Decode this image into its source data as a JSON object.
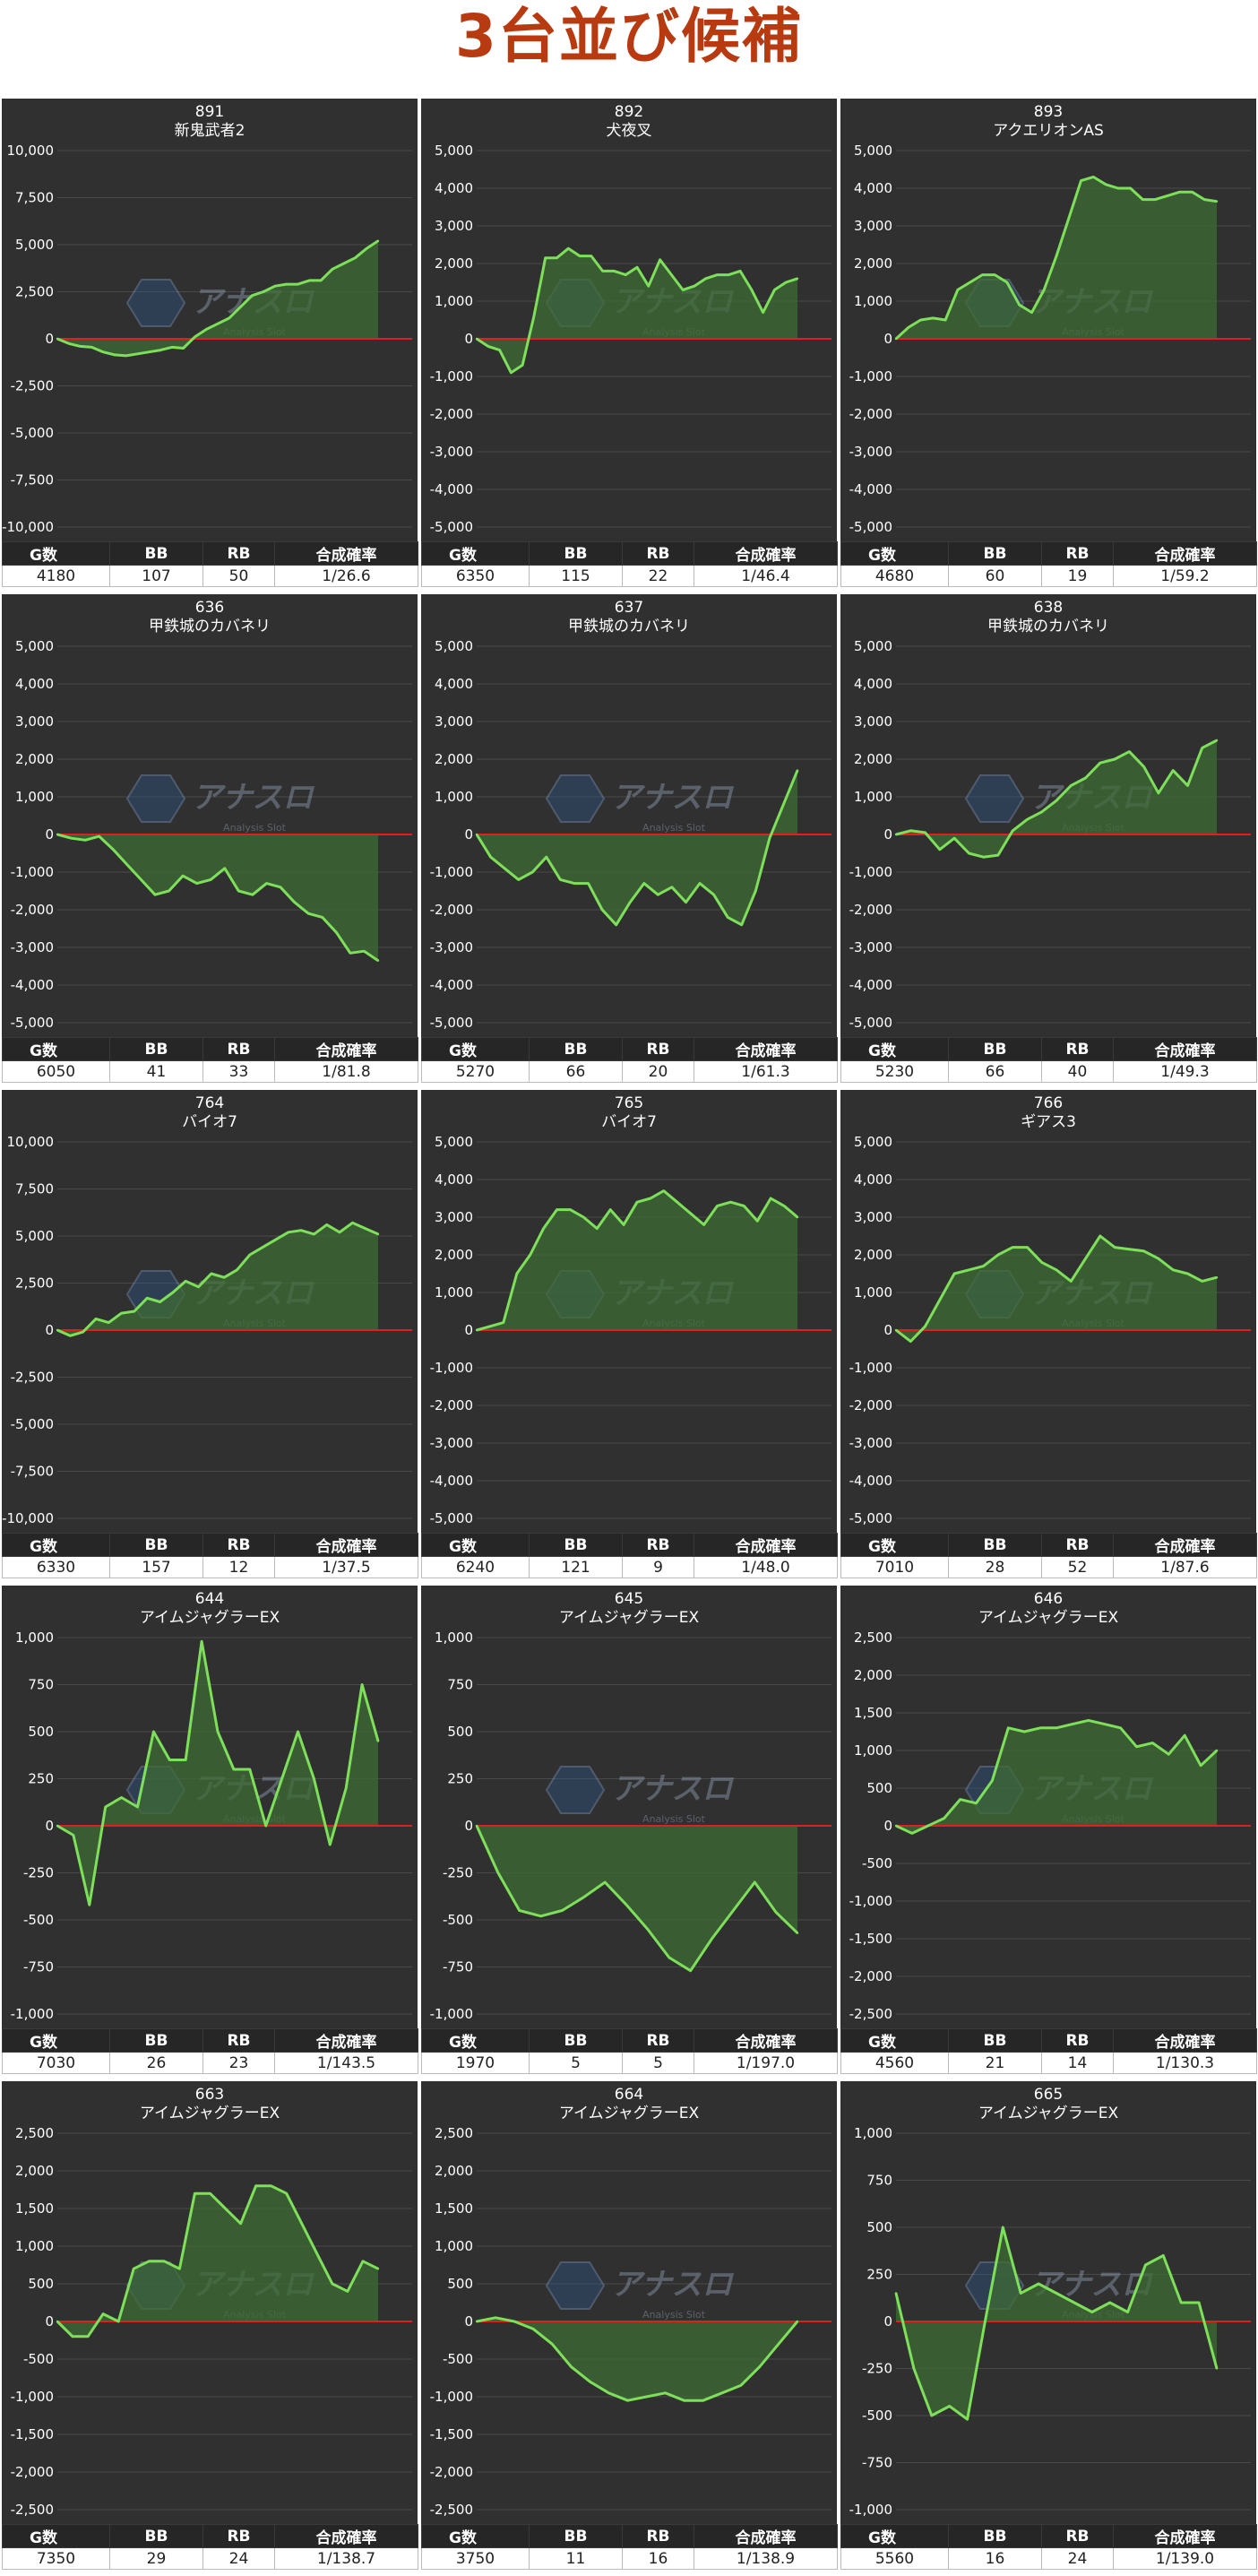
{
  "page_title": "3台並び候補",
  "table_headers": [
    "G数",
    "BB",
    "RB",
    "合成確率"
  ],
  "watermark": {
    "brand": "アナスロ",
    "tagline": "Analysis Slot"
  },
  "colors": {
    "line": "#7ee05a",
    "fill": "#3e6b34",
    "zero_line": "#e02020",
    "plot_bg": "#303030",
    "title": "#b83a10"
  },
  "chart_data": [
    {
      "type": "area",
      "title": "891",
      "subtitle": "新鬼武者2",
      "ylim": [
        -10000,
        10000
      ],
      "yticks": [
        "10,000",
        "7,500",
        "5,000",
        "2,500",
        "0",
        "-2,500",
        "-5,000",
        "-7,500",
        "-10,000"
      ],
      "values": [
        0,
        -250,
        -400,
        -450,
        -700,
        -850,
        -900,
        -800,
        -700,
        -600,
        -450,
        -500,
        100,
        500,
        800,
        1100,
        1700,
        2300,
        2500,
        2800,
        2900,
        2900,
        3100,
        3100,
        3700,
        4000,
        4300,
        4800,
        5200
      ],
      "stats": [
        "4180",
        "107",
        "50",
        "1/26.6"
      ]
    },
    {
      "type": "area",
      "title": "892",
      "subtitle": "犬夜叉",
      "ylim": [
        -5000,
        5000
      ],
      "yticks": [
        "5,000",
        "4,000",
        "3,000",
        "2,000",
        "1,000",
        "0",
        "-1,000",
        "-2,000",
        "-3,000",
        "-4,000",
        "-5,000"
      ],
      "values": [
        0,
        -200,
        -300,
        -900,
        -700,
        600,
        2150,
        2150,
        2400,
        2200,
        2200,
        1800,
        1800,
        1700,
        1900,
        1400,
        2100,
        1700,
        1300,
        1400,
        1600,
        1700,
        1700,
        1800,
        1300,
        700,
        1300,
        1500,
        1600
      ],
      "stats": [
        "6350",
        "115",
        "22",
        "1/46.4"
      ]
    },
    {
      "type": "area",
      "title": "893",
      "subtitle": "アクエリオンAS",
      "ylim": [
        -5000,
        5000
      ],
      "yticks": [
        "5,000",
        "4,000",
        "3,000",
        "2,000",
        "1,000",
        "0",
        "-1,000",
        "-2,000",
        "-3,000",
        "-4,000",
        "-5,000"
      ],
      "values": [
        0,
        300,
        500,
        550,
        500,
        1300,
        1500,
        1700,
        1700,
        1500,
        900,
        700,
        1300,
        2200,
        3200,
        4200,
        4300,
        4100,
        4000,
        4000,
        3700,
        3700,
        3800,
        3900,
        3900,
        3700,
        3650
      ],
      "stats": [
        "4680",
        "60",
        "19",
        "1/59.2"
      ]
    },
    {
      "type": "area",
      "title": "636",
      "subtitle": "甲鉄城のカバネリ",
      "ylim": [
        -5000,
        5000
      ],
      "yticks": [
        "5,000",
        "4,000",
        "3,000",
        "2,000",
        "1,000",
        "0",
        "-1,000",
        "-2,000",
        "-3,000",
        "-4,000",
        "-5,000"
      ],
      "values": [
        0,
        -100,
        -150,
        -50,
        -400,
        -800,
        -1200,
        -1600,
        -1500,
        -1100,
        -1300,
        -1200,
        -900,
        -1500,
        -1600,
        -1300,
        -1400,
        -1800,
        -2100,
        -2200,
        -2600,
        -3150,
        -3100,
        -3350
      ],
      "stats": [
        "6050",
        "41",
        "33",
        "1/81.8"
      ]
    },
    {
      "type": "area",
      "title": "637",
      "subtitle": "甲鉄城のカバネリ",
      "ylim": [
        -5000,
        5000
      ],
      "yticks": [
        "5,000",
        "4,000",
        "3,000",
        "2,000",
        "1,000",
        "0",
        "-1,000",
        "-2,000",
        "-3,000",
        "-4,000",
        "-5,000"
      ],
      "values": [
        0,
        -600,
        -900,
        -1200,
        -1000,
        -600,
        -1200,
        -1300,
        -1300,
        -2000,
        -2400,
        -1800,
        -1300,
        -1600,
        -1400,
        -1800,
        -1300,
        -1600,
        -2200,
        -2400,
        -1500,
        -100,
        800,
        1700
      ],
      "stats": [
        "5270",
        "66",
        "20",
        "1/61.3"
      ]
    },
    {
      "type": "area",
      "title": "638",
      "subtitle": "甲鉄城のカバネリ",
      "ylim": [
        -5000,
        5000
      ],
      "yticks": [
        "5,000",
        "4,000",
        "3,000",
        "2,000",
        "1,000",
        "0",
        "-1,000",
        "-2,000",
        "-3,000",
        "-4,000",
        "-5,000"
      ],
      "values": [
        0,
        100,
        50,
        -400,
        -100,
        -500,
        -600,
        -550,
        100,
        400,
        600,
        900,
        1300,
        1500,
        1900,
        2000,
        2200,
        1800,
        1100,
        1700,
        1300,
        2300,
        2500
      ],
      "stats": [
        "5230",
        "66",
        "40",
        "1/49.3"
      ]
    },
    {
      "type": "area",
      "title": "764",
      "subtitle": "バイオ7",
      "ylim": [
        -10000,
        10000
      ],
      "yticks": [
        "10,000",
        "7,500",
        "5,000",
        "2,500",
        "0",
        "-2,500",
        "-5,000",
        "-7,500",
        "-10,000"
      ],
      "values": [
        0,
        -300,
        -100,
        600,
        400,
        900,
        1000,
        1700,
        1500,
        2000,
        2600,
        2300,
        3000,
        2800,
        3200,
        4000,
        4400,
        4800,
        5200,
        5300,
        5100,
        5600,
        5200,
        5700,
        5400,
        5100
      ],
      "stats": [
        "6330",
        "157",
        "12",
        "1/37.5"
      ]
    },
    {
      "type": "area",
      "title": "765",
      "subtitle": "バイオ7",
      "ylim": [
        -5000,
        5000
      ],
      "yticks": [
        "5,000",
        "4,000",
        "3,000",
        "2,000",
        "1,000",
        "0",
        "-1,000",
        "-2,000",
        "-3,000",
        "-4,000",
        "-5,000"
      ],
      "values": [
        0,
        100,
        200,
        1500,
        2000,
        2700,
        3200,
        3200,
        3000,
        2700,
        3200,
        2800,
        3400,
        3500,
        3700,
        3400,
        3100,
        2800,
        3300,
        3400,
        3300,
        2900,
        3500,
        3300,
        3000
      ],
      "stats": [
        "6240",
        "121",
        "9",
        "1/48.0"
      ]
    },
    {
      "type": "area",
      "title": "766",
      "subtitle": "ギアス3",
      "ylim": [
        -5000,
        5000
      ],
      "yticks": [
        "5,000",
        "4,000",
        "3,000",
        "2,000",
        "1,000",
        "0",
        "-1,000",
        "-2,000",
        "-3,000",
        "-4,000",
        "-5,000"
      ],
      "values": [
        0,
        -300,
        100,
        800,
        1500,
        1600,
        1700,
        2000,
        2200,
        2200,
        1800,
        1600,
        1300,
        1900,
        2500,
        2200,
        2150,
        2100,
        1900,
        1600,
        1500,
        1300,
        1400
      ],
      "stats": [
        "7010",
        "28",
        "52",
        "1/87.6"
      ]
    },
    {
      "type": "area",
      "title": "644",
      "subtitle": "アイムジャグラーEX",
      "ylim": [
        -1000,
        1000
      ],
      "yticks": [
        "1,000",
        "750",
        "500",
        "250",
        "0",
        "-250",
        "-500",
        "-750",
        "-1,000"
      ],
      "values": [
        0,
        -50,
        -420,
        100,
        150,
        100,
        500,
        350,
        350,
        980,
        500,
        300,
        300,
        0,
        250,
        500,
        250,
        -100,
        200,
        750,
        450
      ],
      "stats": [
        "7030",
        "26",
        "23",
        "1/143.5"
      ]
    },
    {
      "type": "area",
      "title": "645",
      "subtitle": "アイムジャグラーEX",
      "ylim": [
        -1000,
        1000
      ],
      "yticks": [
        "1,000",
        "750",
        "500",
        "250",
        "0",
        "-250",
        "-500",
        "-750",
        "-1,000"
      ],
      "values": [
        0,
        -250,
        -450,
        -480,
        -450,
        -380,
        -300,
        -420,
        -550,
        -700,
        -770,
        -600,
        -450,
        -300,
        -460,
        -570
      ],
      "stats": [
        "1970",
        "5",
        "5",
        "1/197.0"
      ]
    },
    {
      "type": "area",
      "title": "646",
      "subtitle": "アイムジャグラーEX",
      "ylim": [
        -2500,
        2500
      ],
      "yticks": [
        "2,500",
        "2,000",
        "1,500",
        "1,000",
        "500",
        "0",
        "-500",
        "-1,000",
        "-1,500",
        "-2,000",
        "-2,500"
      ],
      "values": [
        0,
        -100,
        0,
        100,
        350,
        300,
        600,
        1300,
        1250,
        1300,
        1300,
        1350,
        1400,
        1350,
        1300,
        1050,
        1100,
        950,
        1200,
        800,
        1000
      ],
      "stats": [
        "4560",
        "21",
        "14",
        "1/130.3"
      ]
    },
    {
      "type": "area",
      "title": "663",
      "subtitle": "アイムジャグラーEX",
      "ylim": [
        -2500,
        2500
      ],
      "yticks": [
        "2,500",
        "2,000",
        "1,500",
        "1,000",
        "500",
        "0",
        "-500",
        "-1,000",
        "-1,500",
        "-2,000",
        "-2,500"
      ],
      "values": [
        0,
        -200,
        -200,
        100,
        0,
        700,
        800,
        800,
        700,
        1700,
        1700,
        1500,
        1300,
        1800,
        1800,
        1700,
        1300,
        900,
        500,
        400,
        800,
        700
      ],
      "stats": [
        "7350",
        "29",
        "24",
        "1/138.7"
      ]
    },
    {
      "type": "area",
      "title": "664",
      "subtitle": "アイムジャグラーEX",
      "ylim": [
        -2500,
        2500
      ],
      "yticks": [
        "2,500",
        "2,000",
        "1,500",
        "1,000",
        "500",
        "0",
        "-500",
        "-1,000",
        "-1,500",
        "-2,000",
        "-2,500"
      ],
      "values": [
        0,
        50,
        0,
        -100,
        -300,
        -600,
        -800,
        -950,
        -1050,
        -1000,
        -950,
        -1050,
        -1050,
        -950,
        -850,
        -600,
        -300,
        0
      ],
      "stats": [
        "3750",
        "11",
        "16",
        "1/138.9"
      ]
    },
    {
      "type": "area",
      "title": "665",
      "subtitle": "アイムジャグラーEX",
      "ylim": [
        -1000,
        1000
      ],
      "yticks": [
        "1,000",
        "750",
        "500",
        "250",
        "0",
        "-250",
        "-500",
        "-750",
        "-1,000"
      ],
      "values": [
        150,
        -250,
        -500,
        -450,
        -520,
        0,
        500,
        150,
        200,
        150,
        100,
        50,
        100,
        50,
        300,
        350,
        100,
        100,
        -250
      ],
      "stats": [
        "5560",
        "16",
        "24",
        "1/139.0"
      ]
    }
  ]
}
